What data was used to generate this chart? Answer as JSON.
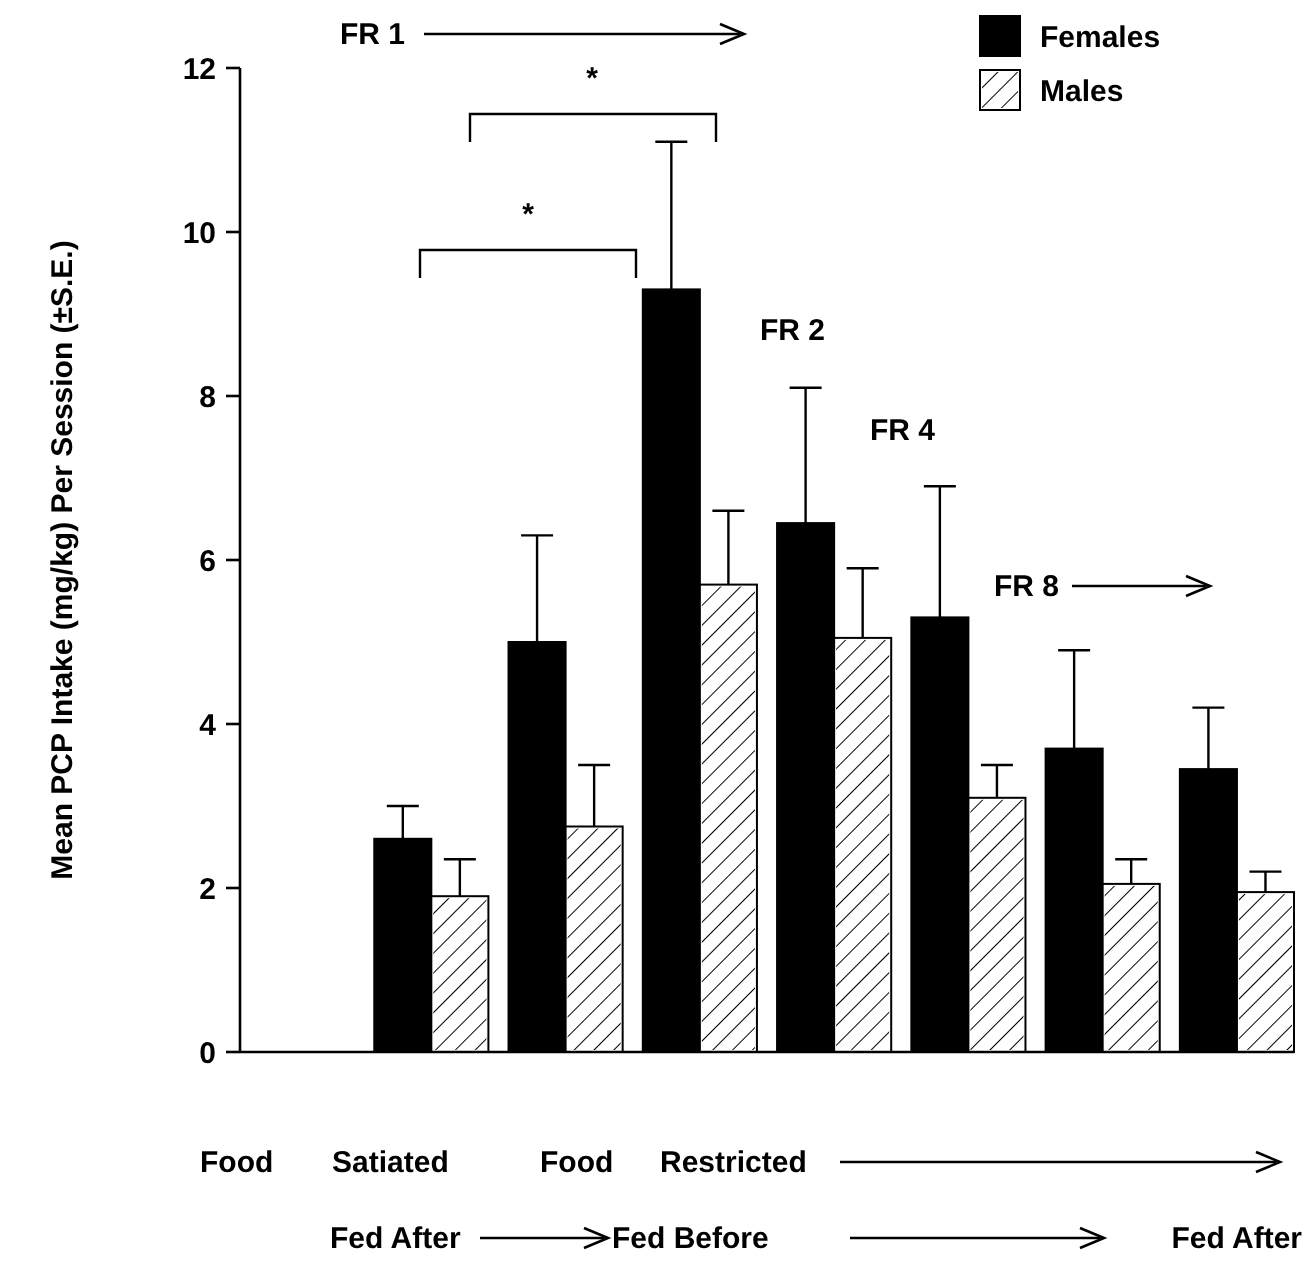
{
  "chart_data": {
    "type": "bar",
    "ylabel": "Mean PCP Intake (mg/kg) Per Session (±S.E.)",
    "categories": [
      null,
      null,
      null,
      null,
      null,
      null,
      null,
      null
    ],
    "series": [
      {
        "name": "Females",
        "color": "#000000",
        "values": [
          null,
          2.6,
          5.0,
          9.3,
          6.45,
          5.3,
          3.7,
          3.45
        ],
        "errors": [
          null,
          0.4,
          1.3,
          1.8,
          1.65,
          1.6,
          1.2,
          0.75
        ]
      },
      {
        "name": "Males",
        "color": "#ffffff",
        "values": [
          null,
          1.9,
          2.75,
          5.7,
          5.05,
          3.1,
          2.05,
          1.95
        ],
        "errors": [
          null,
          0.45,
          0.75,
          0.9,
          0.85,
          0.4,
          0.3,
          0.25
        ]
      }
    ],
    "ylim": [
      0,
      12
    ],
    "yticks": [
      0,
      2,
      4,
      6,
      8,
      10,
      12
    ],
    "grid": false,
    "legend": "top right",
    "annotations": [
      "FR 1",
      "FR 2",
      "FR 4",
      "FR 8",
      "*",
      "*",
      "Food",
      "Satiated",
      "Food",
      "Restricted",
      "Fed After",
      "Fed Before",
      "Fed After"
    ]
  }
}
